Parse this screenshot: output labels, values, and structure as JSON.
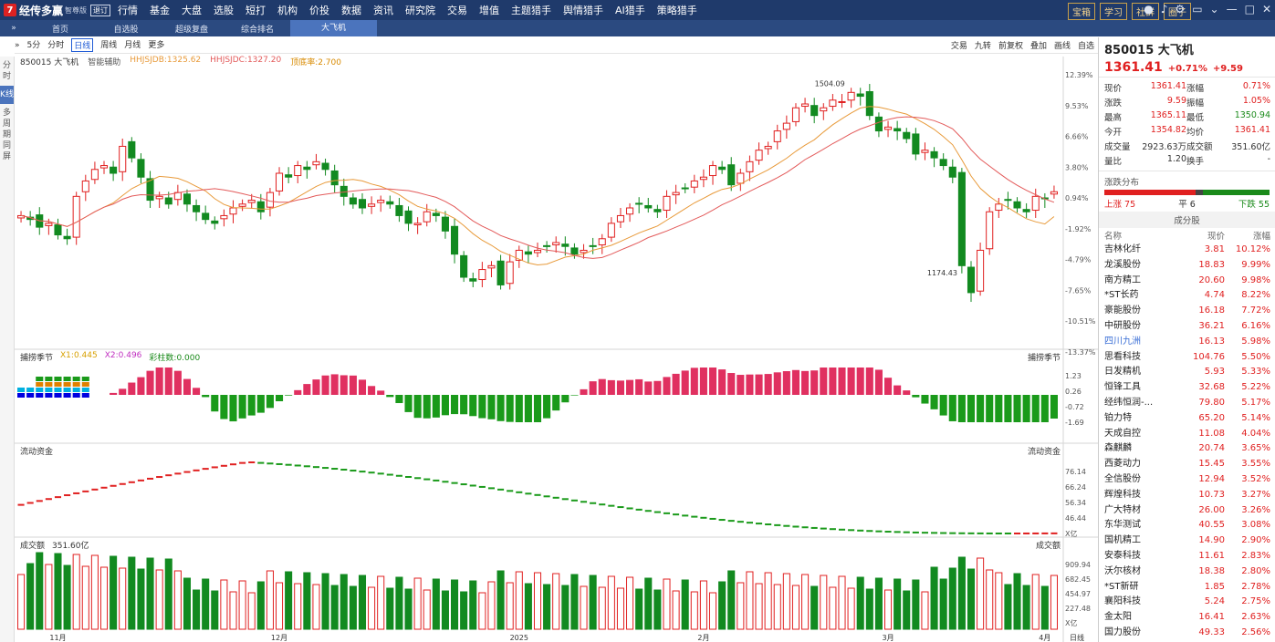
{
  "app": {
    "logo_mark": "7",
    "name": "经传多赢",
    "edition": "智尊版",
    "badge": "退订"
  },
  "menu": [
    "行情",
    "基金",
    "大盘",
    "选股",
    "短打",
    "机构",
    "价投",
    "数据",
    "资讯",
    "研究院",
    "交易",
    "增值",
    "主题猎手",
    "舆情猎手",
    "AI猎手",
    "策略猎手"
  ],
  "menu_right": [
    "宝箱",
    "学习",
    "社群",
    "圈子"
  ],
  "tabs": [
    "首页",
    "自选股",
    "超级复盘",
    "综合排名",
    "大飞机"
  ],
  "left_side": [
    "分时",
    "K线",
    "多周期同屏"
  ],
  "toolbar": {
    "left": [
      "5分",
      "分时",
      "日线",
      "周线",
      "月线",
      "更多"
    ],
    "right": [
      "交易",
      "九转",
      "前复权",
      "叠加",
      "画线",
      "自选"
    ]
  },
  "info": {
    "code": "850015 大飞机",
    "assist": "智能辅助",
    "ma1": "HHJSJDB:1325.62",
    "ma2": "HHJSJDC:1327.20",
    "ma3": "顶底率:2.700"
  },
  "yaxis": {
    "main": [
      "12.39%",
      "9.53%",
      "6.66%",
      "3.80%",
      "0.94%",
      "-1.92%",
      "-4.79%",
      "-7.65%",
      "-10.51%",
      "-13.37%"
    ],
    "osc": [
      "1.23",
      "0.26",
      "-0.72",
      "-1.69"
    ],
    "flow": [
      "76.14",
      "66.24",
      "56.34",
      "46.44",
      "X亿"
    ],
    "vol": [
      "909.94",
      "682.45",
      "454.97",
      "227.48",
      "X亿"
    ]
  },
  "annotations": {
    "high": "1504.09",
    "low": "1174.43"
  },
  "panels": {
    "osc_title": "捕捞季节",
    "osc_x1": "X1:0.445",
    "osc_x2": "X2:0.496",
    "osc_bars": "彩柱数:0.000",
    "flow_title": "流动资金",
    "vol_title": "成交额",
    "vol_value": "351.60亿"
  },
  "xaxis": [
    "11月",
    "12月",
    "2025",
    "2月",
    "3月",
    "4月"
  ],
  "xaxis_right": "日线",
  "zoom": "100%",
  "quote": {
    "title": "850015 大飞机",
    "price": "1361.41",
    "pct": "+0.71%",
    "chg": "+9.59",
    "rows": [
      [
        "现价",
        "1361.41",
        "涨幅",
        "0.71%"
      ],
      [
        "涨跌",
        "9.59",
        "振幅",
        "1.05%"
      ],
      [
        "最高",
        "1365.11",
        "最低",
        "1350.94"
      ],
      [
        "今开",
        "1354.82",
        "均价",
        "1361.41"
      ],
      [
        "成交量",
        "2923.63万",
        "成交额",
        "351.60亿"
      ],
      [
        "量比",
        "1.20",
        "换手",
        "-"
      ]
    ],
    "dist_title": "涨跌分布",
    "up_label": "上涨",
    "up": "75",
    "flat_label": "平",
    "flat": "6",
    "down_label": "下跌",
    "down": "55"
  },
  "stocks_title": "成分股",
  "stocks_head": [
    "名称",
    "现价",
    "涨幅"
  ],
  "stocks": [
    [
      "吉林化纤",
      "3.81",
      "10.12%"
    ],
    [
      "龙溪股份",
      "18.83",
      "9.99%"
    ],
    [
      "南方精工",
      "20.60",
      "9.98%"
    ],
    [
      "*ST长药",
      "4.74",
      "8.22%"
    ],
    [
      "豪能股份",
      "16.18",
      "7.72%"
    ],
    [
      "中研股份",
      "36.21",
      "6.16%"
    ],
    [
      "四川九洲",
      "16.13",
      "5.98%"
    ],
    [
      "思看科技",
      "104.76",
      "5.50%"
    ],
    [
      "日发精机",
      "5.93",
      "5.33%"
    ],
    [
      "恒锋工具",
      "32.68",
      "5.22%"
    ],
    [
      "经纬恒润-...",
      "79.80",
      "5.17%"
    ],
    [
      "铂力特",
      "65.20",
      "5.14%"
    ],
    [
      "天成自控",
      "11.08",
      "4.04%"
    ],
    [
      "森麒麟",
      "20.74",
      "3.65%"
    ],
    [
      "西菱动力",
      "15.45",
      "3.55%"
    ],
    [
      "全信股份",
      "12.94",
      "3.52%"
    ],
    [
      "辉煌科技",
      "10.73",
      "3.27%"
    ],
    [
      "广大特材",
      "26.00",
      "3.26%"
    ],
    [
      "东华测试",
      "40.55",
      "3.08%"
    ],
    [
      "国机精工",
      "14.90",
      "2.90%"
    ],
    [
      "安泰科技",
      "11.61",
      "2.83%"
    ],
    [
      "沃尔核材",
      "18.38",
      "2.80%"
    ],
    [
      "*ST新研",
      "1.85",
      "2.78%"
    ],
    [
      "襄阳科技",
      "5.24",
      "2.75%"
    ],
    [
      "金太阳",
      "16.41",
      "2.63%"
    ],
    [
      "国力股份",
      "49.33",
      "2.56%"
    ]
  ],
  "chart_data": {
    "type": "candlestick",
    "closes": [
      1330,
      1325,
      1315,
      1320,
      1305,
      1300,
      1355,
      1375,
      1390,
      1395,
      1385,
      1420,
      1405,
      1380,
      1350,
      1355,
      1345,
      1360,
      1345,
      1335,
      1325,
      1320,
      1330,
      1340,
      1345,
      1350,
      1335,
      1360,
      1385,
      1380,
      1395,
      1390,
      1400,
      1390,
      1370,
      1355,
      1345,
      1340,
      1345,
      1350,
      1345,
      1330,
      1320,
      1320,
      1335,
      1330,
      1310,
      1280,
      1250,
      1245,
      1260,
      1265,
      1240,
      1270,
      1285,
      1280,
      1285,
      1290,
      1295,
      1290,
      1280,
      1285,
      1290,
      1300,
      1320,
      1330,
      1340,
      1345,
      1340,
      1335,
      1355,
      1360,
      1365,
      1375,
      1380,
      1395,
      1390,
      1370,
      1385,
      1400,
      1415,
      1420,
      1440,
      1450,
      1470,
      1475,
      1460,
      1470,
      1480,
      1478,
      1490,
      1485,
      1460,
      1440,
      1445,
      1440,
      1430,
      1410,
      1415,
      1405,
      1395,
      1380,
      1265,
      1230,
      1285,
      1335,
      1345,
      1350,
      1340,
      1335,
      1355,
      1352,
      1361
    ]
  }
}
